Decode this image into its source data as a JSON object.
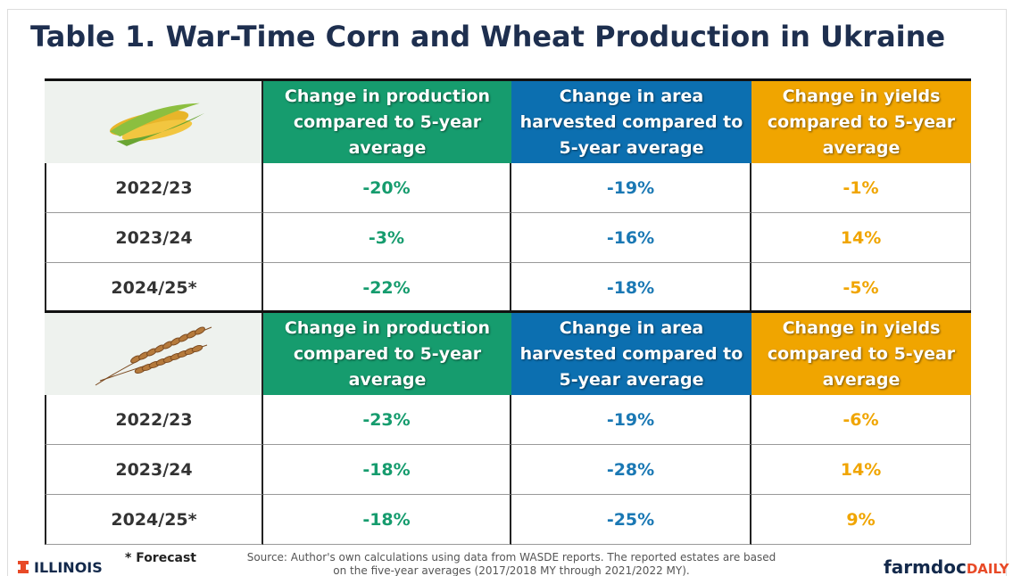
{
  "title": "Table 1. War-Time Corn and Wheat Production in Ukraine",
  "tables": [
    {
      "headers": [
        "Change in production compared to 5-year average",
        "Change in area harvested compared to 5-year average",
        "Change in yields compared to 5-year average"
      ],
      "rows": [
        [
          "2022/23",
          "-20%",
          "-19%",
          "-1%"
        ],
        [
          "2023/24",
          "-3%",
          "-16%",
          "14%"
        ],
        [
          "2024/25*",
          "-22%",
          "-18%",
          "-5%"
        ]
      ]
    },
    {
      "headers": [
        "Change in production compared to 5-year average",
        "Change in area harvested compared to 5-year average",
        "Change in yields compared to 5-year average"
      ],
      "rows": [
        [
          "2022/23",
          "-23%",
          "-19%",
          "-6%"
        ],
        [
          "2023/24",
          "-18%",
          "-28%",
          "14%"
        ],
        [
          "2024/25*",
          "-18%",
          "-25%",
          "9%"
        ]
      ]
    }
  ],
  "footnote": "* Forecast",
  "source": "Source: Author's own calculations  using data from WASDE reports. The reported estates are based on the five-year averages (2017/2018 MY through 2021/2022 MY).",
  "logo_left": "ILLINOIS",
  "logo_right": {
    "main": "farmdoc",
    "accent": "DAILY"
  }
}
